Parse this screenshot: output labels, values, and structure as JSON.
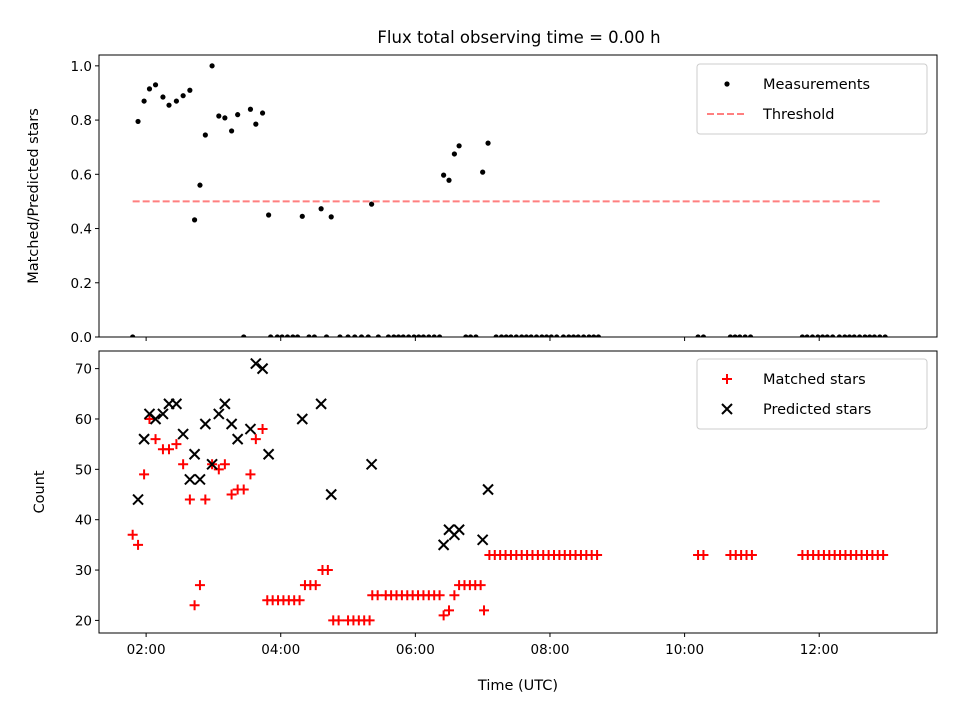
{
  "title": "Flux total observing time = 0.00 h",
  "chart_data": [
    {
      "type": "scatter",
      "ylabel": "Matched/Predicted stars",
      "xlabel": "",
      "xlim_hours": [
        1.3,
        13.75
      ],
      "ylim": [
        0,
        1.04
      ],
      "y_ticks": [
        0.0,
        0.2,
        0.4,
        0.6,
        0.8,
        1.0
      ],
      "y_tick_labels": [
        "0.0",
        "0.2",
        "0.4",
        "0.6",
        "0.8",
        "1.0"
      ],
      "legend_position": "upper right",
      "series": [
        {
          "name": "Measurements",
          "kind": "dot",
          "color": "#000000",
          "points": [
            [
              1.8,
              0.0
            ],
            [
              1.88,
              0.795
            ],
            [
              1.97,
              0.87
            ],
            [
              2.05,
              0.915
            ],
            [
              2.14,
              0.93
            ],
            [
              2.25,
              0.885
            ],
            [
              2.34,
              0.855
            ],
            [
              2.45,
              0.87
            ],
            [
              2.55,
              0.89
            ],
            [
              2.65,
              0.91
            ],
            [
              2.72,
              0.432
            ],
            [
              2.8,
              0.56
            ],
            [
              2.88,
              0.745
            ],
            [
              2.98,
              1.0
            ],
            [
              3.08,
              0.815
            ],
            [
              3.17,
              0.808
            ],
            [
              3.27,
              0.76
            ],
            [
              3.36,
              0.82
            ],
            [
              3.45,
              0.0
            ],
            [
              3.55,
              0.84
            ],
            [
              3.63,
              0.785
            ],
            [
              3.73,
              0.826
            ],
            [
              3.82,
              0.45
            ],
            [
              3.85,
              0.0
            ],
            [
              3.95,
              0.0
            ],
            [
              4.02,
              0.0
            ],
            [
              4.1,
              0.0
            ],
            [
              4.18,
              0.0
            ],
            [
              4.25,
              0.0
            ],
            [
              4.32,
              0.445
            ],
            [
              4.42,
              0.0
            ],
            [
              4.5,
              0.0
            ],
            [
              4.6,
              0.473
            ],
            [
              4.68,
              0.0
            ],
            [
              4.75,
              0.443
            ],
            [
              4.88,
              0.0
            ],
            [
              5.0,
              0.0
            ],
            [
              5.1,
              0.0
            ],
            [
              5.2,
              0.0
            ],
            [
              5.3,
              0.0
            ],
            [
              5.35,
              0.49
            ],
            [
              5.45,
              0.0
            ],
            [
              5.6,
              0.0
            ],
            [
              5.68,
              0.0
            ],
            [
              5.75,
              0.0
            ],
            [
              5.82,
              0.0
            ],
            [
              5.9,
              0.0
            ],
            [
              5.98,
              0.0
            ],
            [
              6.05,
              0.0
            ],
            [
              6.12,
              0.0
            ],
            [
              6.2,
              0.0
            ],
            [
              6.28,
              0.0
            ],
            [
              6.36,
              0.0
            ],
            [
              6.42,
              0.597
            ],
            [
              6.5,
              0.578
            ],
            [
              6.58,
              0.675
            ],
            [
              6.65,
              0.705
            ],
            [
              6.75,
              0.0
            ],
            [
              6.82,
              0.0
            ],
            [
              6.9,
              0.0
            ],
            [
              7.0,
              0.608
            ],
            [
              7.08,
              0.715
            ],
            [
              7.2,
              0.0
            ],
            [
              7.28,
              0.0
            ],
            [
              7.35,
              0.0
            ],
            [
              7.42,
              0.0
            ],
            [
              7.5,
              0.0
            ],
            [
              7.58,
              0.0
            ],
            [
              7.65,
              0.0
            ],
            [
              7.72,
              0.0
            ],
            [
              7.8,
              0.0
            ],
            [
              7.88,
              0.0
            ],
            [
              7.95,
              0.0
            ],
            [
              8.02,
              0.0
            ],
            [
              8.1,
              0.0
            ],
            [
              8.2,
              0.0
            ],
            [
              8.28,
              0.0
            ],
            [
              8.35,
              0.0
            ],
            [
              8.42,
              0.0
            ],
            [
              8.5,
              0.0
            ],
            [
              8.58,
              0.0
            ],
            [
              8.65,
              0.0
            ],
            [
              8.72,
              0.0
            ],
            [
              10.2,
              0.0
            ],
            [
              10.28,
              0.0
            ],
            [
              10.68,
              0.0
            ],
            [
              10.75,
              0.0
            ],
            [
              10.82,
              0.0
            ],
            [
              10.9,
              0.0
            ],
            [
              10.98,
              0.0
            ],
            [
              11.75,
              0.0
            ],
            [
              11.82,
              0.0
            ],
            [
              11.9,
              0.0
            ],
            [
              11.98,
              0.0
            ],
            [
              12.05,
              0.0
            ],
            [
              12.12,
              0.0
            ],
            [
              12.2,
              0.0
            ],
            [
              12.3,
              0.0
            ],
            [
              12.38,
              0.0
            ],
            [
              12.45,
              0.0
            ],
            [
              12.52,
              0.0
            ],
            [
              12.6,
              0.0
            ],
            [
              12.68,
              0.0
            ],
            [
              12.75,
              0.0
            ],
            [
              12.82,
              0.0
            ],
            [
              12.9,
              0.0
            ],
            [
              12.98,
              0.0
            ]
          ]
        },
        {
          "name": "Threshold",
          "kind": "dashed-line",
          "color": "#ff7f7f",
          "x": [
            1.8,
            12.9
          ],
          "y": [
            0.5,
            0.5
          ]
        }
      ]
    },
    {
      "type": "scatter",
      "ylabel": "Count",
      "xlabel": "Time (UTC)",
      "xlim_hours": [
        1.3,
        13.75
      ],
      "ylim": [
        17.5,
        73.5
      ],
      "y_ticks": [
        20,
        30,
        40,
        50,
        60,
        70
      ],
      "y_tick_labels": [
        "20",
        "30",
        "40",
        "50",
        "60",
        "70"
      ],
      "x_ticks_hours": [
        2,
        4,
        6,
        8,
        10,
        12
      ],
      "x_tick_labels": [
        "02:00",
        "04:00",
        "06:00",
        "08:00",
        "10:00",
        "12:00"
      ],
      "legend_position": "upper right",
      "series": [
        {
          "name": "Matched stars",
          "kind": "plus",
          "color": "#ff0000",
          "points": [
            [
              1.8,
              37
            ],
            [
              1.88,
              35
            ],
            [
              1.97,
              49
            ],
            [
              2.05,
              60
            ],
            [
              2.14,
              56
            ],
            [
              2.25,
              54
            ],
            [
              2.34,
              54
            ],
            [
              2.45,
              55
            ],
            [
              2.55,
              51
            ],
            [
              2.65,
              44
            ],
            [
              2.72,
              23
            ],
            [
              2.8,
              27
            ],
            [
              2.88,
              44
            ],
            [
              2.98,
              51
            ],
            [
              3.08,
              50
            ],
            [
              3.17,
              51
            ],
            [
              3.27,
              45
            ],
            [
              3.36,
              46
            ],
            [
              3.45,
              46
            ],
            [
              3.55,
              49
            ],
            [
              3.63,
              56
            ],
            [
              3.73,
              58
            ],
            [
              3.8,
              24
            ],
            [
              3.88,
              24
            ],
            [
              3.96,
              24
            ],
            [
              4.04,
              24
            ],
            [
              4.12,
              24
            ],
            [
              4.2,
              24
            ],
            [
              4.28,
              24
            ],
            [
              4.36,
              27
            ],
            [
              4.44,
              27
            ],
            [
              4.52,
              27
            ],
            [
              4.62,
              30
            ],
            [
              4.7,
              30
            ],
            [
              4.78,
              20
            ],
            [
              4.86,
              20
            ],
            [
              5.0,
              20
            ],
            [
              5.08,
              20
            ],
            [
              5.16,
              20
            ],
            [
              5.24,
              20
            ],
            [
              5.32,
              20
            ],
            [
              5.36,
              25
            ],
            [
              5.44,
              25
            ],
            [
              5.56,
              25
            ],
            [
              5.64,
              25
            ],
            [
              5.72,
              25
            ],
            [
              5.8,
              25
            ],
            [
              5.88,
              25
            ],
            [
              5.96,
              25
            ],
            [
              6.04,
              25
            ],
            [
              6.12,
              25
            ],
            [
              6.2,
              25
            ],
            [
              6.28,
              25
            ],
            [
              6.36,
              25
            ],
            [
              6.42,
              21
            ],
            [
              6.5,
              22
            ],
            [
              6.58,
              25
            ],
            [
              6.65,
              27
            ],
            [
              6.73,
              27
            ],
            [
              6.81,
              27
            ],
            [
              6.89,
              27
            ],
            [
              6.97,
              27
            ],
            [
              7.02,
              22
            ],
            [
              7.1,
              33
            ],
            [
              7.18,
              33
            ],
            [
              7.26,
              33
            ],
            [
              7.34,
              33
            ],
            [
              7.42,
              33
            ],
            [
              7.5,
              33
            ],
            [
              7.58,
              33
            ],
            [
              7.66,
              33
            ],
            [
              7.74,
              33
            ],
            [
              7.82,
              33
            ],
            [
              7.9,
              33
            ],
            [
              7.98,
              33
            ],
            [
              8.06,
              33
            ],
            [
              8.14,
              33
            ],
            [
              8.22,
              33
            ],
            [
              8.3,
              33
            ],
            [
              8.38,
              33
            ],
            [
              8.46,
              33
            ],
            [
              8.54,
              33
            ],
            [
              8.62,
              33
            ],
            [
              8.7,
              33
            ],
            [
              10.2,
              33
            ],
            [
              10.28,
              33
            ],
            [
              10.68,
              33
            ],
            [
              10.76,
              33
            ],
            [
              10.84,
              33
            ],
            [
              10.92,
              33
            ],
            [
              11.0,
              33
            ],
            [
              11.75,
              33
            ],
            [
              11.83,
              33
            ],
            [
              11.91,
              33
            ],
            [
              11.99,
              33
            ],
            [
              12.07,
              33
            ],
            [
              12.15,
              33
            ],
            [
              12.23,
              33
            ],
            [
              12.31,
              33
            ],
            [
              12.39,
              33
            ],
            [
              12.47,
              33
            ],
            [
              12.55,
              33
            ],
            [
              12.63,
              33
            ],
            [
              12.71,
              33
            ],
            [
              12.79,
              33
            ],
            [
              12.87,
              33
            ],
            [
              12.95,
              33
            ]
          ]
        },
        {
          "name": "Predicted stars",
          "kind": "x",
          "color": "#000000",
          "points": [
            [
              1.88,
              44
            ],
            [
              1.97,
              56
            ],
            [
              2.05,
              61
            ],
            [
              2.14,
              60
            ],
            [
              2.25,
              61
            ],
            [
              2.34,
              63
            ],
            [
              2.45,
              63
            ],
            [
              2.55,
              57
            ],
            [
              2.65,
              48
            ],
            [
              2.72,
              53
            ],
            [
              2.8,
              48
            ],
            [
              2.88,
              59
            ],
            [
              2.98,
              51
            ],
            [
              3.08,
              61
            ],
            [
              3.17,
              63
            ],
            [
              3.27,
              59
            ],
            [
              3.36,
              56
            ],
            [
              3.55,
              58
            ],
            [
              3.63,
              71
            ],
            [
              3.73,
              70
            ],
            [
              3.82,
              53
            ],
            [
              4.32,
              60
            ],
            [
              4.6,
              63
            ],
            [
              4.75,
              45
            ],
            [
              5.35,
              51
            ],
            [
              6.42,
              35
            ],
            [
              6.5,
              38
            ],
            [
              6.58,
              37
            ],
            [
              6.65,
              38
            ],
            [
              7.0,
              36
            ],
            [
              7.08,
              46
            ]
          ]
        }
      ]
    }
  ]
}
